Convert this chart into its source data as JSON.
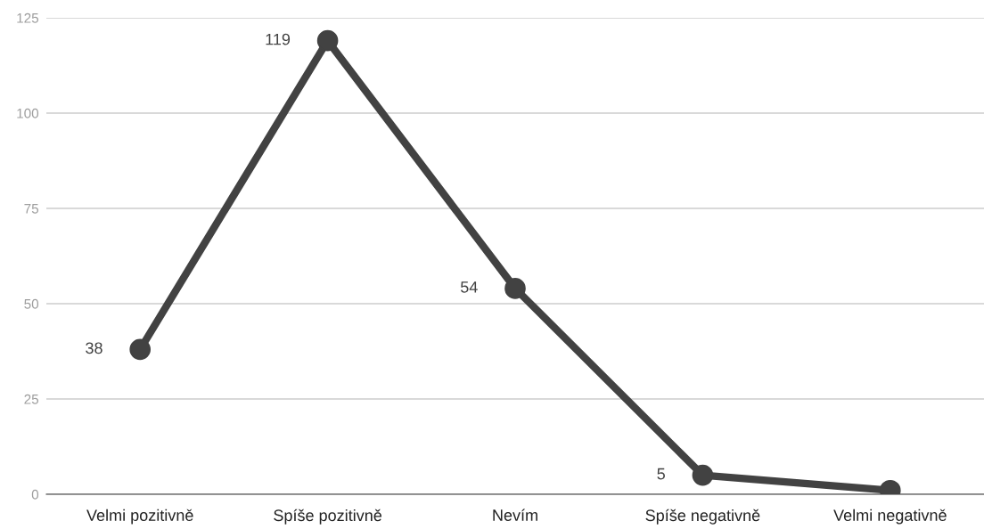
{
  "chart_data": {
    "type": "line",
    "categories": [
      "Velmi pozitivně",
      "Spíše pozitivně",
      "Nevím",
      "Spíše negativně",
      "Velmi negativně"
    ],
    "series": [
      {
        "color": "#424242",
        "values": [
          38,
          119,
          54,
          5,
          1
        ],
        "value_labels": [
          "38",
          "119",
          "54",
          "5",
          null
        ]
      }
    ],
    "ylim": [
      0,
      125
    ],
    "yticks": [
      0,
      25,
      50,
      75,
      100,
      125
    ],
    "grid": "y",
    "marker": "circle",
    "line_style": "solid"
  }
}
